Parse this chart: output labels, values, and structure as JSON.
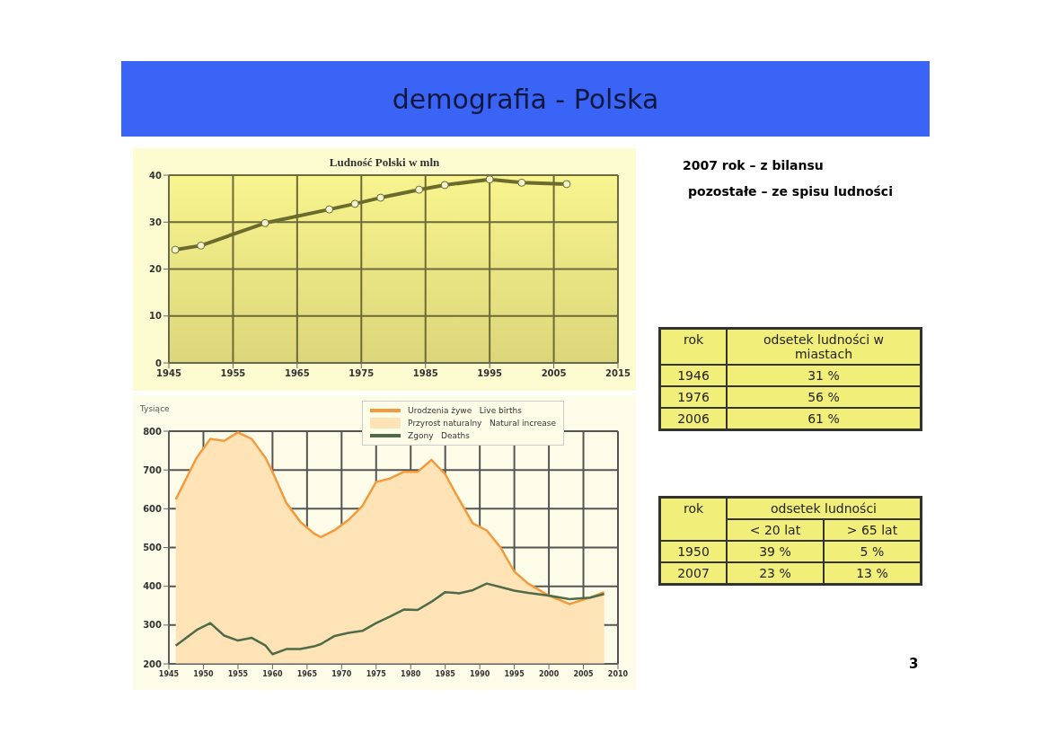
{
  "chart_data": [
    {
      "type": "line",
      "title": "Ludność Polski w mln",
      "x": [
        1946,
        1950,
        1960,
        1970,
        1974,
        1978,
        1984,
        1988,
        1995,
        2000,
        2007
      ],
      "series": [
        {
          "color": "#6b6b2e",
          "values": [
            24.1,
            25.0,
            29.8,
            32.7,
            33.9,
            35.2,
            36.9,
            37.9,
            39.1,
            38.4,
            38.1
          ]
        }
      ],
      "xlim": [
        1945,
        2015
      ],
      "xticks": [
        1945,
        1955,
        1965,
        1975,
        1985,
        1995,
        2005,
        2015
      ],
      "ylim": [
        0,
        40
      ],
      "yticks": [
        0,
        10,
        20,
        30,
        40
      ],
      "grid": true,
      "marker": "circle"
    },
    {
      "type": "area",
      "ylabel": "Tysiące",
      "x": [
        1946,
        1949,
        1951,
        1953,
        1955,
        1957,
        1959,
        1960,
        1962,
        1964,
        1966,
        1967,
        1969,
        1971,
        1973,
        1975,
        1977,
        1979,
        1981,
        1983,
        1985,
        1987,
        1989,
        1991,
        1993,
        1995,
        1997,
        2000,
        2003,
        2006,
        2008
      ],
      "series": [
        {
          "name": "Urodzenia żywe   Live births",
          "color": "#f39a3c",
          "values": [
            624,
            731,
            780,
            775,
            797,
            780,
            731,
            695,
            615,
            567,
            536,
            527,
            545,
            571,
            607,
            669,
            678,
            695,
            695,
            726,
            689,
            624,
            562,
            544,
            500,
            438,
            407,
            376,
            354,
            371,
            385
          ]
        },
        {
          "name": "Zgony   Deaths",
          "type": "line",
          "color": "#4f6b4a",
          "values": [
            247,
            287,
            305,
            273,
            260,
            267,
            247,
            225,
            238,
            238,
            245,
            251,
            272,
            280,
            285,
            305,
            322,
            340,
            339,
            360,
            385,
            382,
            390,
            407,
            398,
            389,
            383,
            376,
            367,
            371,
            380
          ]
        }
      ],
      "annotations": [
        "Przyrost naturalny   Natural increase"
      ],
      "xlim": [
        1945,
        2010
      ],
      "xticks": [
        1945,
        1950,
        1955,
        1960,
        1965,
        1970,
        1975,
        1980,
        1985,
        1990,
        1995,
        2000,
        2005,
        2010
      ],
      "ylim": [
        200,
        800
      ],
      "yticks": [
        200,
        300,
        400,
        500,
        600,
        700,
        800
      ],
      "grid": true,
      "legend": "top right"
    },
    {
      "type": "other",
      "title": "demografia - Polska",
      "annotations": [
        "2007 rok – z bilansu",
        "pozostałe – ze spisu ludności",
        "rok",
        "odsetek ludności w miastach",
        "1946",
        "31 %",
        "1976",
        "56 %",
        "2006",
        "61 %",
        "rok",
        "odsetek ludności",
        "< 20 lat",
        "> 65 lat",
        "1950",
        "39 %",
        "5 %",
        "2007",
        "23 %",
        "13 %",
        "3"
      ]
    }
  ]
}
